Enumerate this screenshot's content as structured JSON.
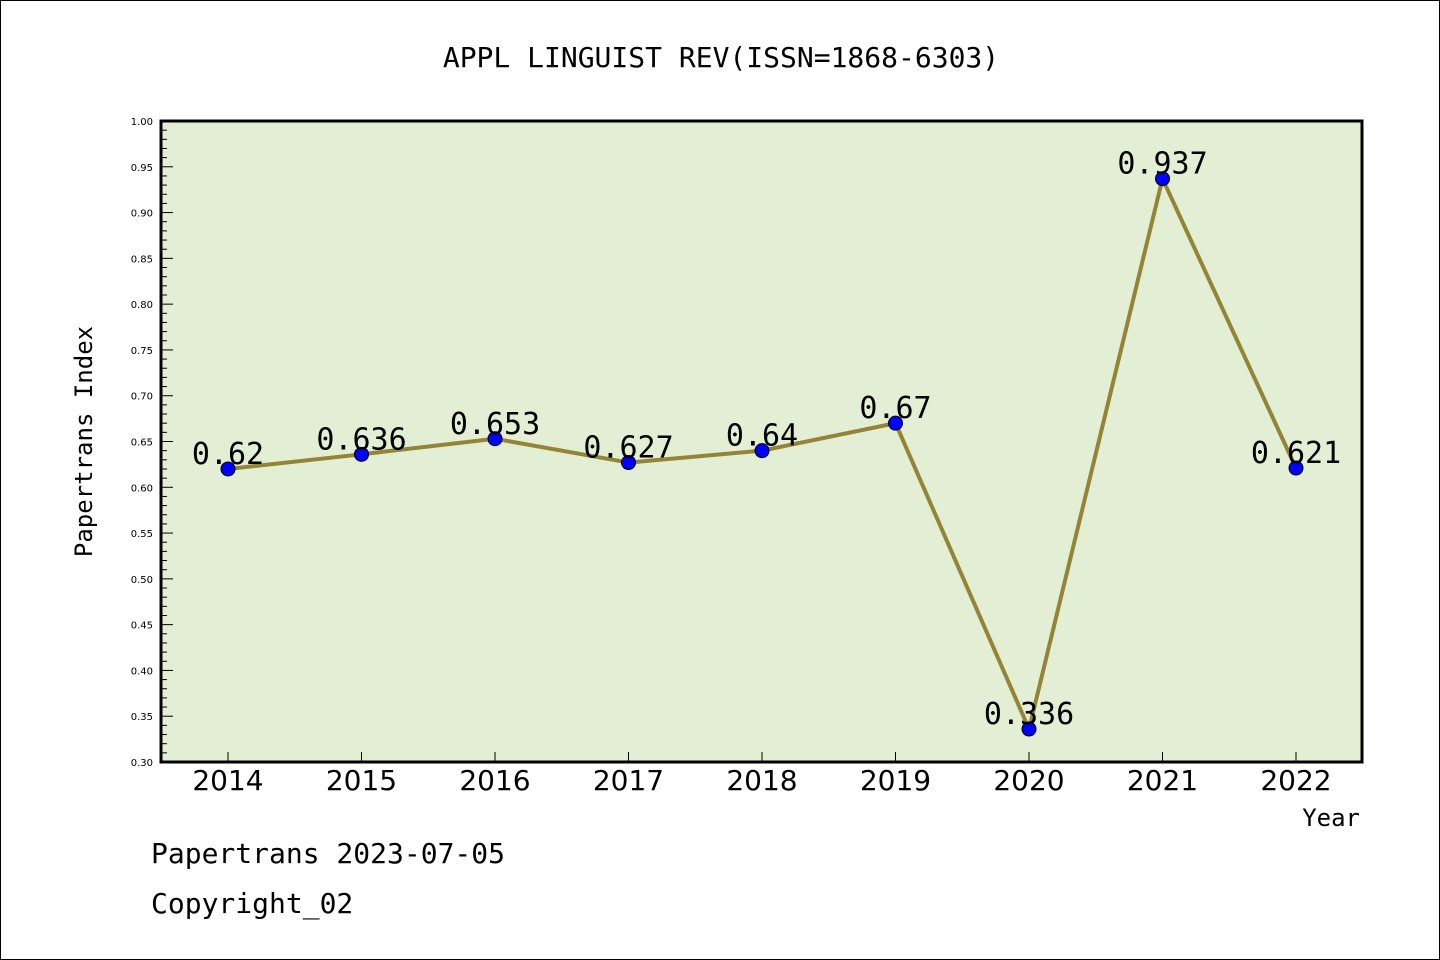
{
  "chart_data": {
    "type": "line",
    "title": "APPL LINGUIST REV(ISSN=1868-6303)",
    "xlabel": "Year",
    "ylabel": "Papertrans Index",
    "categories": [
      "2014",
      "2015",
      "2016",
      "2017",
      "2018",
      "2019",
      "2020",
      "2021",
      "2022"
    ],
    "values": [
      0.62,
      0.636,
      0.653,
      0.627,
      0.64,
      0.67,
      0.336,
      0.937,
      0.621
    ],
    "data_labels": [
      "0.62",
      "0.636",
      "0.653",
      "0.627",
      "0.64",
      "0.67",
      "0.336",
      "0.937",
      "0.621"
    ],
    "ylim": [
      0.3,
      1.0
    ],
    "yticks": [
      "0.30",
      "0.35",
      "0.40",
      "0.45",
      "0.50",
      "0.55",
      "0.60",
      "0.65",
      "0.70",
      "0.75",
      "0.80",
      "0.85",
      "0.90",
      "0.95",
      "1.00"
    ],
    "grid": false,
    "colors": {
      "plot_background": "#e2efd4",
      "line": "#938535",
      "marker": "#0000ff"
    }
  },
  "footer": {
    "line1": "Papertrans 2023-07-05",
    "line2": "Copyright_02"
  }
}
